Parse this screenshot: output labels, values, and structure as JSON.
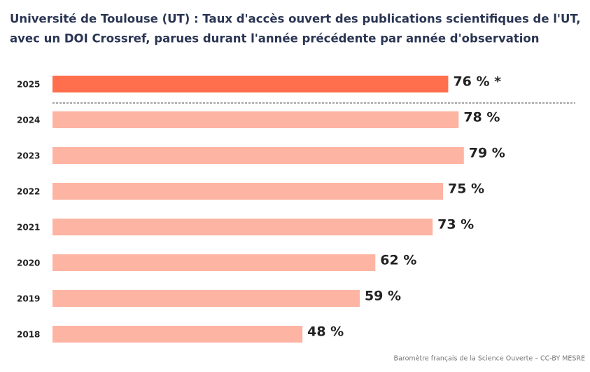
{
  "chart_data": {
    "type": "bar",
    "orientation": "horizontal",
    "title": [
      "Université de Toulouse (UT) : Taux d'accès ouvert des publications scientifiques de l'UT,",
      "avec un DOI Crossref, parues durant l'année précédente par année d'observation"
    ],
    "categories": [
      "2025",
      "2024",
      "2023",
      "2022",
      "2021",
      "2020",
      "2019",
      "2018"
    ],
    "values": [
      76,
      78,
      79,
      75,
      73,
      62,
      59,
      48
    ],
    "value_labels": [
      "76 % *",
      "78 %",
      "79 %",
      "75 %",
      "73 %",
      "62 %",
      "59 %",
      "48 %"
    ],
    "colors": [
      "#ff6f4d",
      "#fdb4a2",
      "#fdb4a2",
      "#fdb4a2",
      "#fdb4a2",
      "#fdb4a2",
      "#fdb4a2",
      "#fdb4a2"
    ],
    "xlim": [
      0,
      100
    ],
    "credit": "Baromètre français de la Science Ouverte – CC-BY MESRE"
  }
}
